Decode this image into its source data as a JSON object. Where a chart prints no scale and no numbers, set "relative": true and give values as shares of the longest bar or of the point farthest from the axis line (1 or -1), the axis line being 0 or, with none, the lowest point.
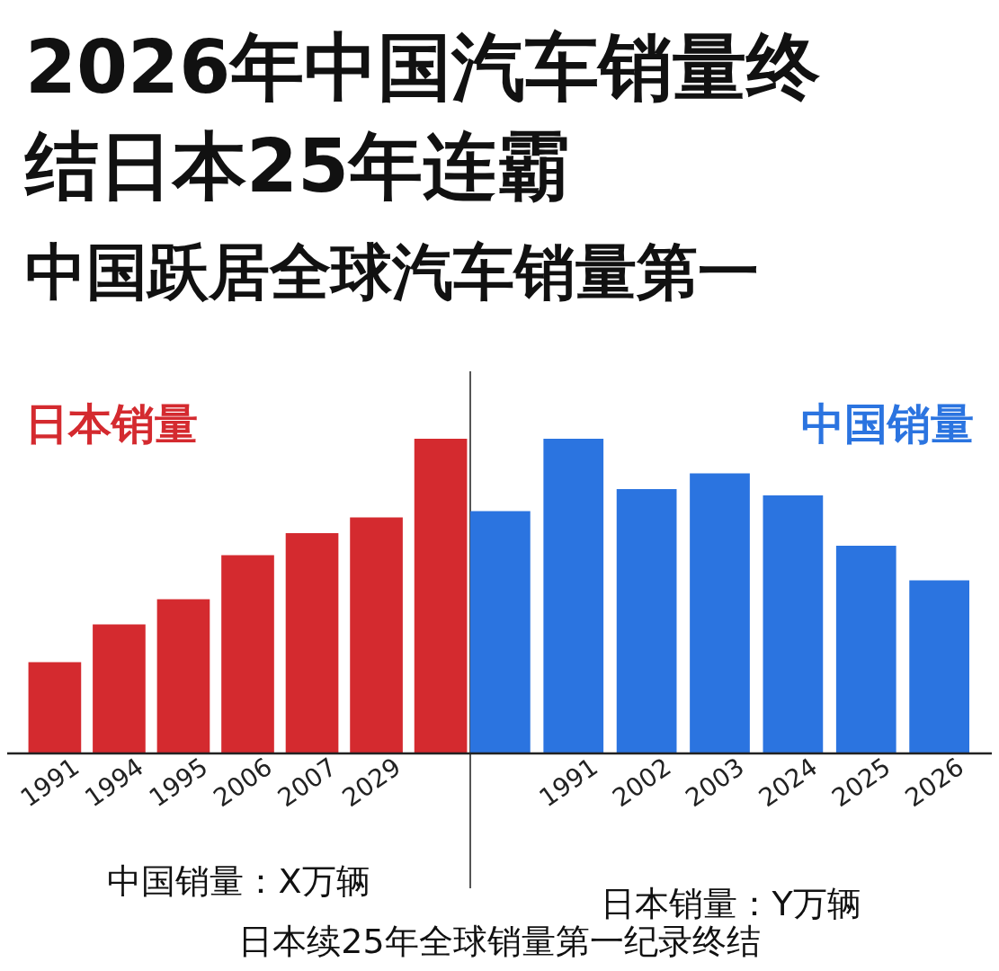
{
  "chart_data": [
    {
      "type": "bar",
      "title": "2026年中国汽车销量终结日本25年连霸",
      "subtitle": "中国跃居全球汽车销量第一",
      "categories": [
        "1991",
        "1994",
        "1995",
        "2006",
        "2007",
        "2029",
        null
      ],
      "relative": true,
      "legend": "top left",
      "xlabel": "中国销量：X万辆",
      "series": [
        {
          "name": "日本销量",
          "color": "#d42a2f",
          "values": [
            0.29,
            0.41,
            0.49,
            0.63,
            0.7,
            0.75,
            1
          ]
        }
      ]
    },
    {
      "type": "bar",
      "categories": [
        null,
        "1991",
        "2002",
        "2003",
        "2024",
        "2025",
        "2026"
      ],
      "relative": true,
      "legend": "top right",
      "xlabel": "日本销量：Y万辆",
      "annotations": [
        "日本续25年全球销量第一纪录终结"
      ],
      "series": [
        {
          "name": "中国销量",
          "color": "#2b74e0",
          "values": [
            0.77,
            1,
            0.84,
            0.89,
            0.82,
            0.66,
            0.55
          ]
        }
      ]
    }
  ]
}
